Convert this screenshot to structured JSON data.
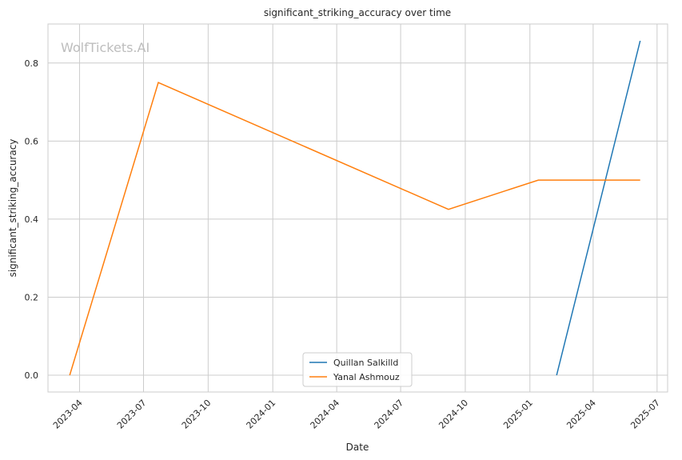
{
  "watermark": "WolfTickets.AI",
  "chart_data": {
    "type": "line",
    "title": "significant_striking_accuracy over time",
    "xlabel": "Date",
    "ylabel": "significant_striking_accuracy",
    "x_ticks": [
      "2023-04",
      "2023-07",
      "2023-10",
      "2024-01",
      "2024-04",
      "2024-07",
      "2024-10",
      "2025-01",
      "2025-04",
      "2025-07"
    ],
    "y_ticks": [
      0.0,
      0.2,
      0.4,
      0.6,
      0.8
    ],
    "y_tick_labels": [
      "0.0",
      "0.2",
      "0.4",
      "0.6",
      "0.8"
    ],
    "xlim": [
      "2023-02-15",
      "2025-07-16"
    ],
    "ylim": [
      -0.043,
      0.9
    ],
    "grid": true,
    "legend_position": "bottom-center",
    "series": [
      {
        "name": "Quillan Salkilld",
        "color": "#1f77b4",
        "points": [
          {
            "x": "2025-02-08",
            "y": 0.0
          },
          {
            "x": "2025-06-07",
            "y": 0.857
          }
        ]
      },
      {
        "name": "Yanal Ashmouz",
        "color": "#ff7f0e",
        "points": [
          {
            "x": "2023-03-18",
            "y": 0.0
          },
          {
            "x": "2023-07-22",
            "y": 0.75
          },
          {
            "x": "2024-09-07",
            "y": 0.425
          },
          {
            "x": "2025-01-13",
            "y": 0.5
          },
          {
            "x": "2025-06-07",
            "y": 0.5
          }
        ]
      }
    ]
  }
}
